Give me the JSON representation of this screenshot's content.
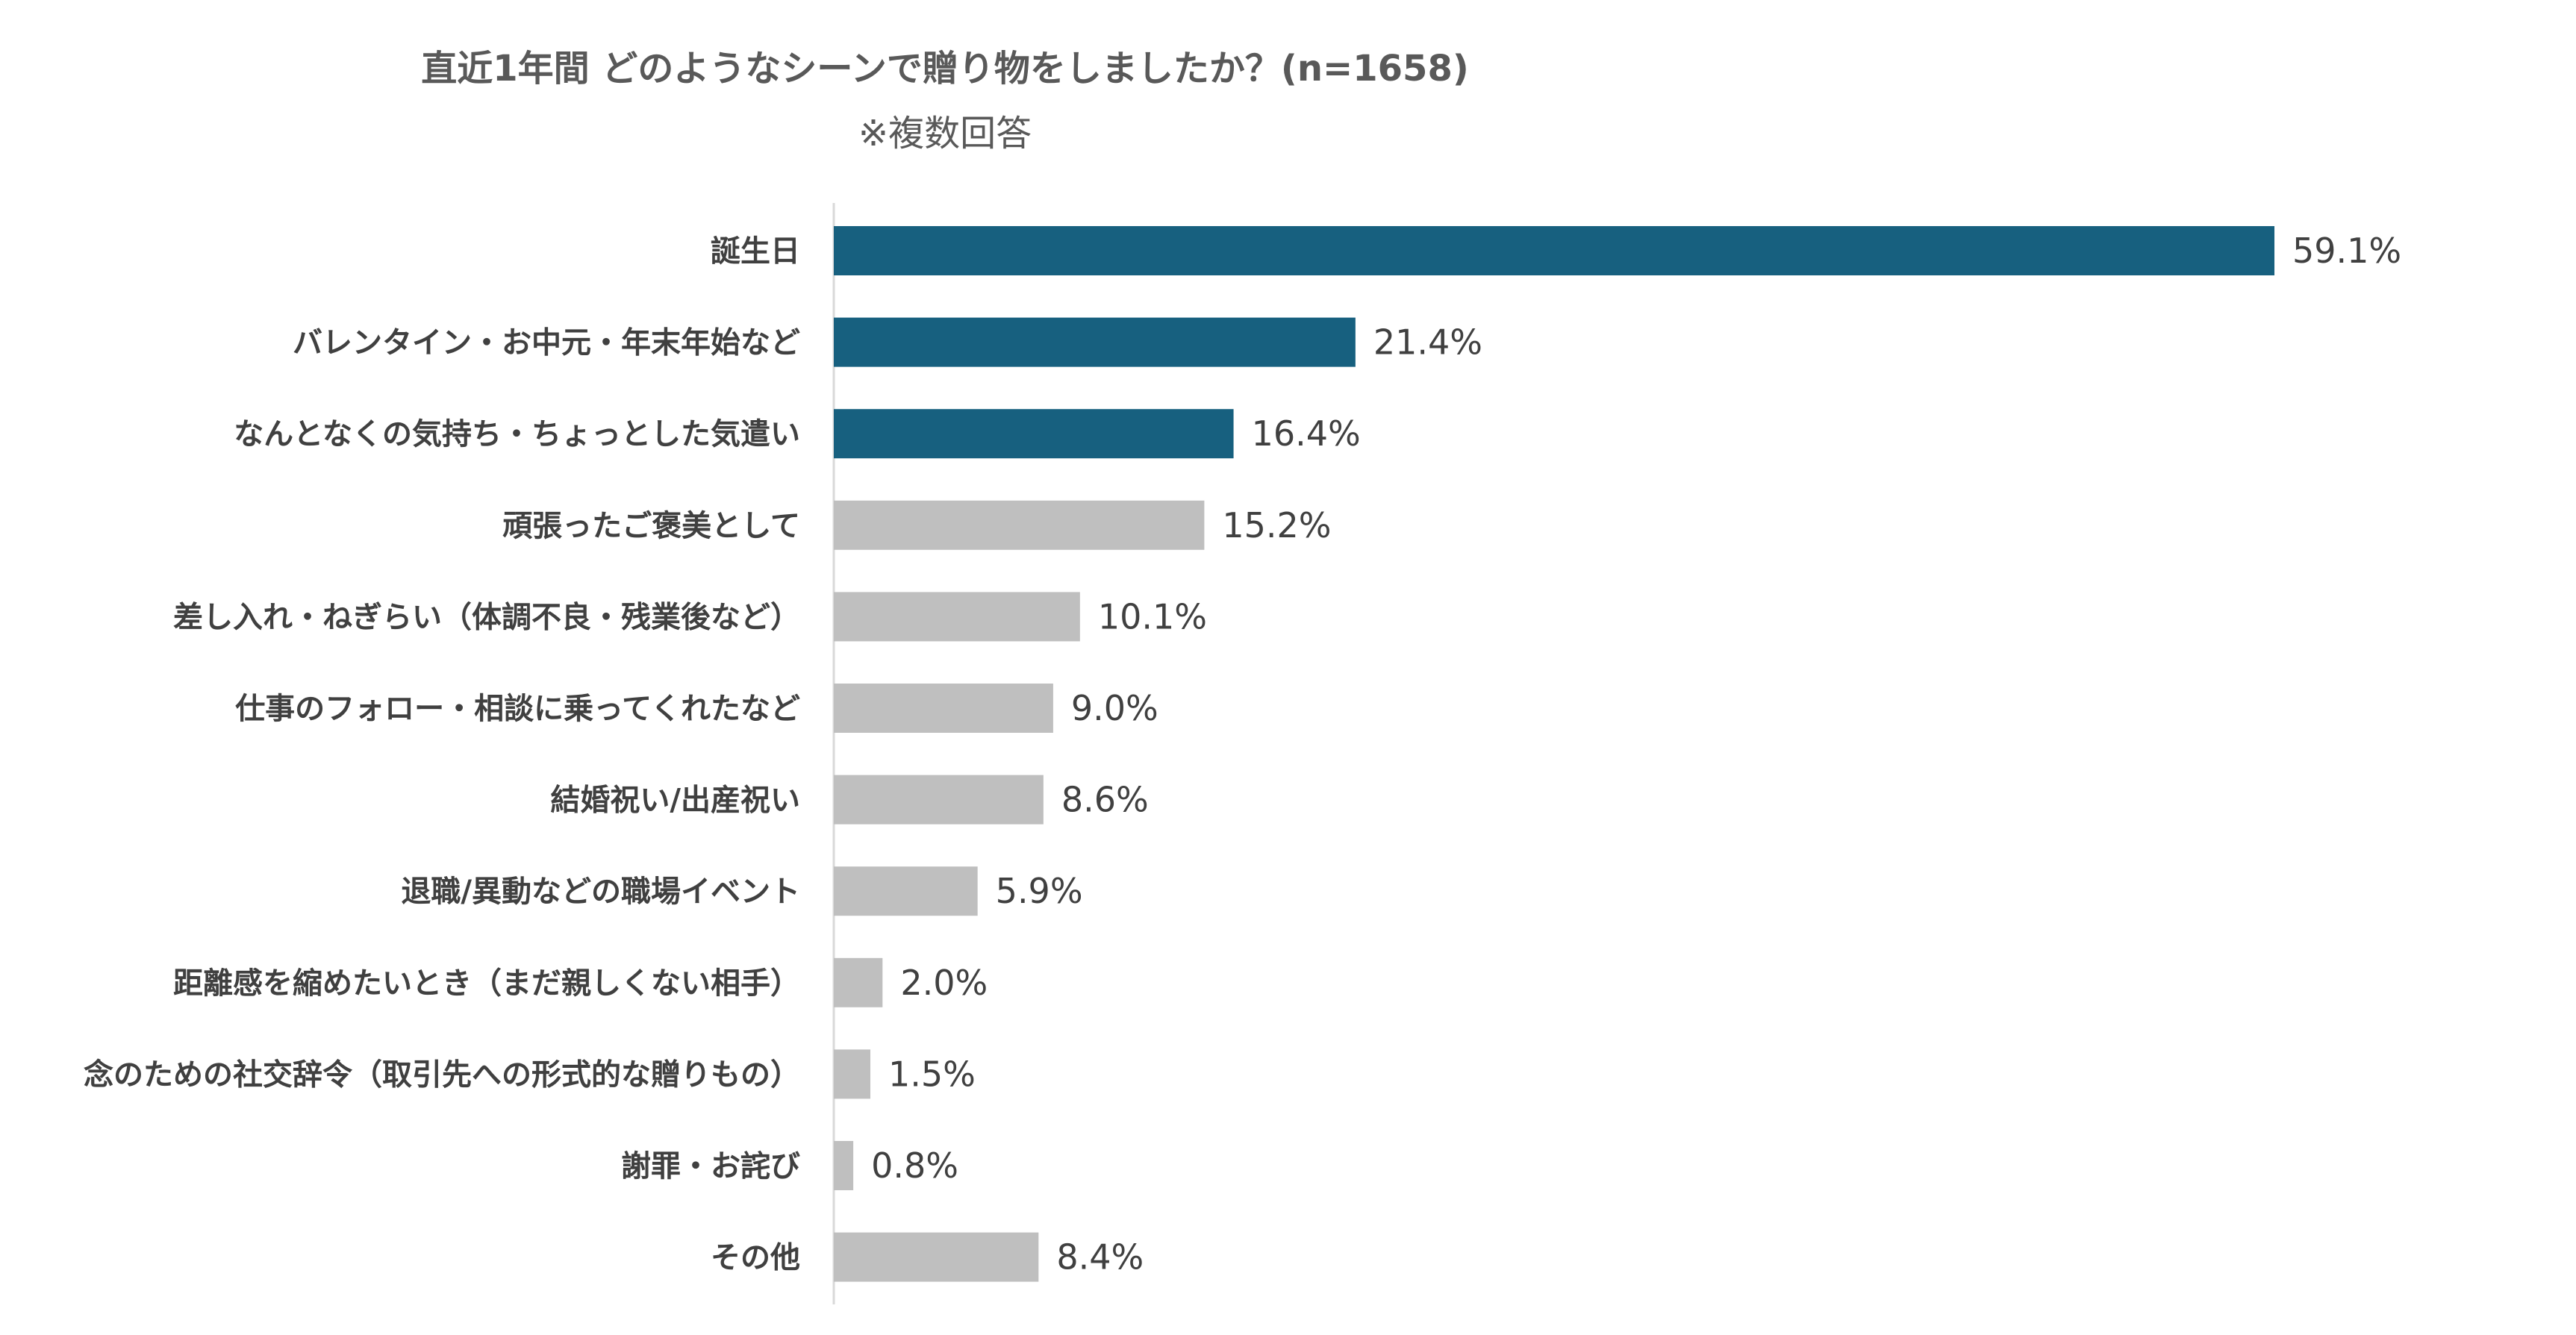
{
  "chart_data": {
    "type": "bar",
    "orientation": "horizontal",
    "title": "直近1年間 どのようなシーンで贈り物をしましたか？(n=1658)",
    "subtitle": "※複数回答",
    "categories": [
      "誕生日",
      "バレンタイン・お中元・年末年始など",
      "なんとなくの気持ち・ちょっとした気遣い",
      "頑張ったご褒美として",
      "差し入れ・ねぎらい（体調不良・残業後など）",
      "仕事のフォロー・相談に乗ってくれたなど",
      "結婚祝い/出産祝い",
      "退職/異動などの職場イベント",
      "距離感を縮めたいとき（まだ親しくない相手）",
      "念のための社交辞令（取引先への形式的な贈りもの）",
      "謝罪・お詫び",
      "その他"
    ],
    "values": [
      59.1,
      21.4,
      16.4,
      15.2,
      10.1,
      9.0,
      8.6,
      5.9,
      2.0,
      1.5,
      0.8,
      8.4
    ],
    "value_labels": [
      "59.1%",
      "21.4%",
      "16.4%",
      "15.2%",
      "10.1%",
      "9.0%",
      "8.6%",
      "5.9%",
      "2.0%",
      "1.5%",
      "0.8%",
      "8.4%"
    ],
    "highlight_count": 3,
    "colors": {
      "highlight": "#17607F",
      "default": "#BFBFBF",
      "axis": "#D9D9D9"
    },
    "xlim": [
      0,
      60
    ],
    "grid": false,
    "legend": "none"
  }
}
